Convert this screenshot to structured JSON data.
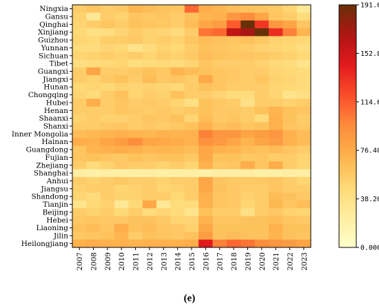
{
  "chart_data": {
    "type": "heatmap",
    "panel_label": "(e)",
    "x": [
      "2007",
      "2008",
      "2009",
      "2010",
      "2011",
      "2012",
      "2013",
      "2014",
      "2015",
      "2016",
      "2017",
      "2018",
      "2019",
      "2020",
      "2021",
      "2022",
      "2023"
    ],
    "y": [
      "Ningxia",
      "Gansu",
      "Qinghai",
      "Xinjiang",
      "Guizhou",
      "Yunnan",
      "Sichuan",
      "Tibet",
      "Guangxi",
      "Jiangxi",
      "Hunan",
      "Chongqing",
      "Hubei",
      "Henan",
      "Shaanxi",
      "Shanxi",
      "Inner Mongolia",
      "Hainan",
      "Guangdong",
      "Fujian",
      "Zhejiang",
      "Shanghai",
      "Anhui",
      "Jiangsu",
      "Shandong",
      "Tianjin",
      "Beijing",
      "Hebei",
      "Liaoning",
      "Jilin",
      "Heilongjiang"
    ],
    "values": [
      [
        55,
        60,
        55,
        58,
        70,
        65,
        62,
        60,
        110,
        75,
        70,
        65,
        62,
        60,
        58,
        50,
        30
      ],
      [
        52,
        30,
        55,
        52,
        60,
        58,
        60,
        55,
        62,
        70,
        72,
        90,
        95,
        80,
        60,
        55,
        45
      ],
      [
        50,
        55,
        60,
        55,
        62,
        60,
        58,
        55,
        65,
        80,
        85,
        115,
        191,
        130,
        90,
        80,
        60
      ],
      [
        48,
        40,
        42,
        50,
        55,
        52,
        50,
        45,
        55,
        105,
        110,
        160,
        170,
        191,
        135,
        100,
        70
      ],
      [
        50,
        48,
        55,
        55,
        58,
        52,
        55,
        52,
        60,
        65,
        62,
        60,
        62,
        58,
        52,
        50,
        48
      ],
      [
        45,
        45,
        50,
        48,
        35,
        45,
        52,
        48,
        55,
        62,
        60,
        58,
        55,
        52,
        50,
        48,
        42
      ],
      [
        50,
        52,
        55,
        52,
        55,
        50,
        55,
        52,
        58,
        65,
        62,
        60,
        60,
        58,
        55,
        52,
        48
      ],
      [
        42,
        45,
        48,
        50,
        42,
        45,
        48,
        45,
        50,
        60,
        55,
        55,
        55,
        52,
        48,
        45,
        35
      ],
      [
        55,
        80,
        55,
        55,
        58,
        62,
        58,
        70,
        65,
        62,
        60,
        58,
        55,
        55,
        50,
        48,
        45
      ],
      [
        55,
        52,
        58,
        62,
        55,
        65,
        58,
        60,
        55,
        78,
        60,
        58,
        55,
        60,
        52,
        50,
        45
      ],
      [
        48,
        50,
        48,
        52,
        50,
        52,
        50,
        48,
        55,
        62,
        60,
        55,
        55,
        55,
        50,
        48,
        45
      ],
      [
        50,
        45,
        55,
        62,
        50,
        55,
        52,
        62,
        55,
        55,
        50,
        45,
        45,
        55,
        50,
        35,
        40
      ],
      [
        55,
        75,
        55,
        60,
        55,
        58,
        55,
        50,
        40,
        62,
        58,
        55,
        38,
        55,
        55,
        52,
        55
      ],
      [
        55,
        55,
        55,
        60,
        58,
        55,
        58,
        55,
        58,
        62,
        58,
        58,
        55,
        62,
        70,
        62,
        60
      ],
      [
        52,
        55,
        52,
        52,
        55,
        60,
        58,
        62,
        50,
        65,
        58,
        60,
        55,
        45,
        72,
        62,
        55
      ],
      [
        55,
        55,
        58,
        60,
        55,
        58,
        55,
        58,
        62,
        72,
        62,
        65,
        60,
        62,
        72,
        60,
        58
      ],
      [
        65,
        68,
        70,
        72,
        70,
        68,
        72,
        70,
        72,
        100,
        90,
        90,
        80,
        85,
        90,
        72,
        65
      ],
      [
        75,
        72,
        80,
        85,
        95,
        80,
        78,
        75,
        72,
        92,
        88,
        80,
        70,
        80,
        85,
        72,
        65
      ],
      [
        60,
        70,
        72,
        75,
        72,
        68,
        70,
        68,
        65,
        80,
        72,
        70,
        65,
        62,
        65,
        60,
        55
      ],
      [
        60,
        62,
        60,
        58,
        62,
        60,
        62,
        62,
        58,
        78,
        62,
        62,
        58,
        60,
        55,
        55,
        50
      ],
      [
        55,
        45,
        52,
        58,
        55,
        55,
        52,
        55,
        50,
        72,
        58,
        60,
        75,
        60,
        75,
        55,
        50
      ],
      [
        22,
        20,
        22,
        20,
        20,
        22,
        20,
        20,
        22,
        20,
        22,
        22,
        22,
        20,
        20,
        22,
        22
      ],
      [
        55,
        52,
        55,
        58,
        55,
        55,
        52,
        55,
        55,
        80,
        60,
        58,
        58,
        58,
        60,
        55,
        50
      ],
      [
        52,
        55,
        55,
        50,
        52,
        55,
        50,
        52,
        55,
        78,
        62,
        58,
        55,
        55,
        60,
        55,
        55
      ],
      [
        50,
        45,
        55,
        52,
        52,
        55,
        55,
        48,
        55,
        72,
        60,
        58,
        52,
        55,
        65,
        62,
        58
      ],
      [
        35,
        48,
        52,
        30,
        48,
        78,
        30,
        45,
        45,
        72,
        60,
        58,
        50,
        55,
        68,
        60,
        65
      ],
      [
        55,
        52,
        55,
        48,
        55,
        45,
        50,
        45,
        35,
        62,
        55,
        55,
        38,
        55,
        58,
        52,
        50
      ],
      [
        58,
        60,
        58,
        58,
        62,
        62,
        58,
        50,
        50,
        72,
        60,
        60,
        62,
        62,
        65,
        60,
        58
      ],
      [
        62,
        65,
        60,
        75,
        62,
        65,
        60,
        58,
        52,
        78,
        62,
        62,
        62,
        62,
        72,
        62,
        62
      ],
      [
        58,
        60,
        62,
        70,
        55,
        62,
        60,
        58,
        62,
        85,
        62,
        65,
        62,
        62,
        70,
        62,
        60
      ],
      [
        72,
        75,
        72,
        72,
        70,
        72,
        72,
        72,
        75,
        145,
        100,
        110,
        105,
        95,
        90,
        85,
        80
      ]
    ],
    "colorbar": {
      "min": 0,
      "max": 191,
      "ticks": [
        "191.0",
        "152.8",
        "114.6",
        "76.40",
        "38.20",
        "0.000"
      ],
      "colormap": "YlOrBr"
    }
  }
}
